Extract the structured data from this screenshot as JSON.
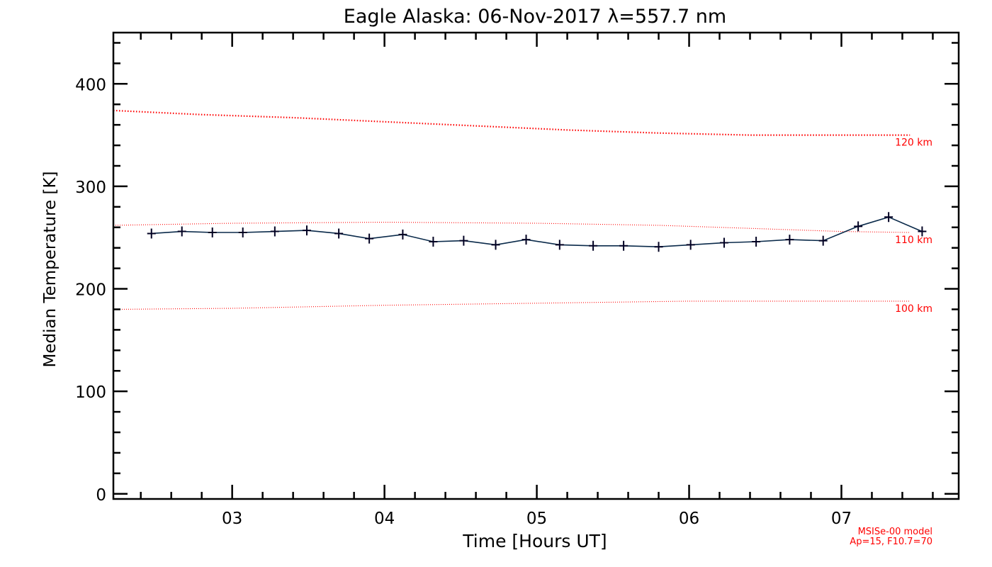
{
  "chart_data": {
    "type": "line",
    "title": "Eagle Alaska: 06-Nov-2017 λ=557.7 nm",
    "xlabel": "Time [Hours UT]",
    "ylabel": "Median Temperature [K]",
    "xlim": [
      2.22,
      7.77
    ],
    "ylim": [
      -5,
      450
    ],
    "x_major_ticks": [
      3,
      4,
      5,
      6,
      7
    ],
    "x_tick_labels": [
      "03",
      "04",
      "05",
      "06",
      "07"
    ],
    "y_major_ticks": [
      0,
      100,
      200,
      300,
      400
    ],
    "y_tick_labels": [
      "0",
      "100",
      "200",
      "300",
      "400"
    ],
    "grid": false,
    "series": [
      {
        "color": "#0a2a4a",
        "marker": "plus",
        "x": [
          2.47,
          2.67,
          2.87,
          3.07,
          3.28,
          3.49,
          3.7,
          3.9,
          4.12,
          4.32,
          4.52,
          4.73,
          4.93,
          5.15,
          5.37,
          5.57,
          5.8,
          6.01,
          6.23,
          6.44,
          6.66,
          6.88,
          7.11,
          7.31,
          7.53
        ],
        "y": [
          254,
          256,
          255,
          255,
          256,
          257,
          254,
          249,
          253,
          246,
          247,
          243,
          248,
          243,
          242,
          242,
          241,
          243,
          245,
          246,
          248,
          247,
          261,
          270,
          256
        ]
      }
    ],
    "model_curves": [
      {
        "name": "120 km",
        "color": "#ff0000",
        "style": "dotted-heavy",
        "x": [
          2.22,
          2.8,
          3.4,
          4.0,
          4.6,
          5.2,
          5.8,
          6.4,
          7.0,
          7.45
        ],
        "y": [
          374,
          370,
          367,
          363,
          359,
          355,
          352,
          350,
          350,
          350
        ]
      },
      {
        "name": "110 km",
        "color": "#ff0000",
        "style": "dotted",
        "x": [
          2.22,
          3.0,
          4.0,
          5.0,
          5.8,
          6.4,
          7.0,
          7.45
        ],
        "y": [
          262,
          264,
          265,
          264,
          262,
          259,
          256,
          255
        ]
      },
      {
        "name": "100 km",
        "color": "#ff0000",
        "style": "dotted",
        "x": [
          2.22,
          3.0,
          4.0,
          5.0,
          6.0,
          7.0,
          7.45
        ],
        "y": [
          180,
          181,
          184,
          186,
          188,
          188,
          188
        ]
      }
    ],
    "annotations": [
      "MSISe-00 model",
      "Ap=15, F10.7=70"
    ]
  }
}
